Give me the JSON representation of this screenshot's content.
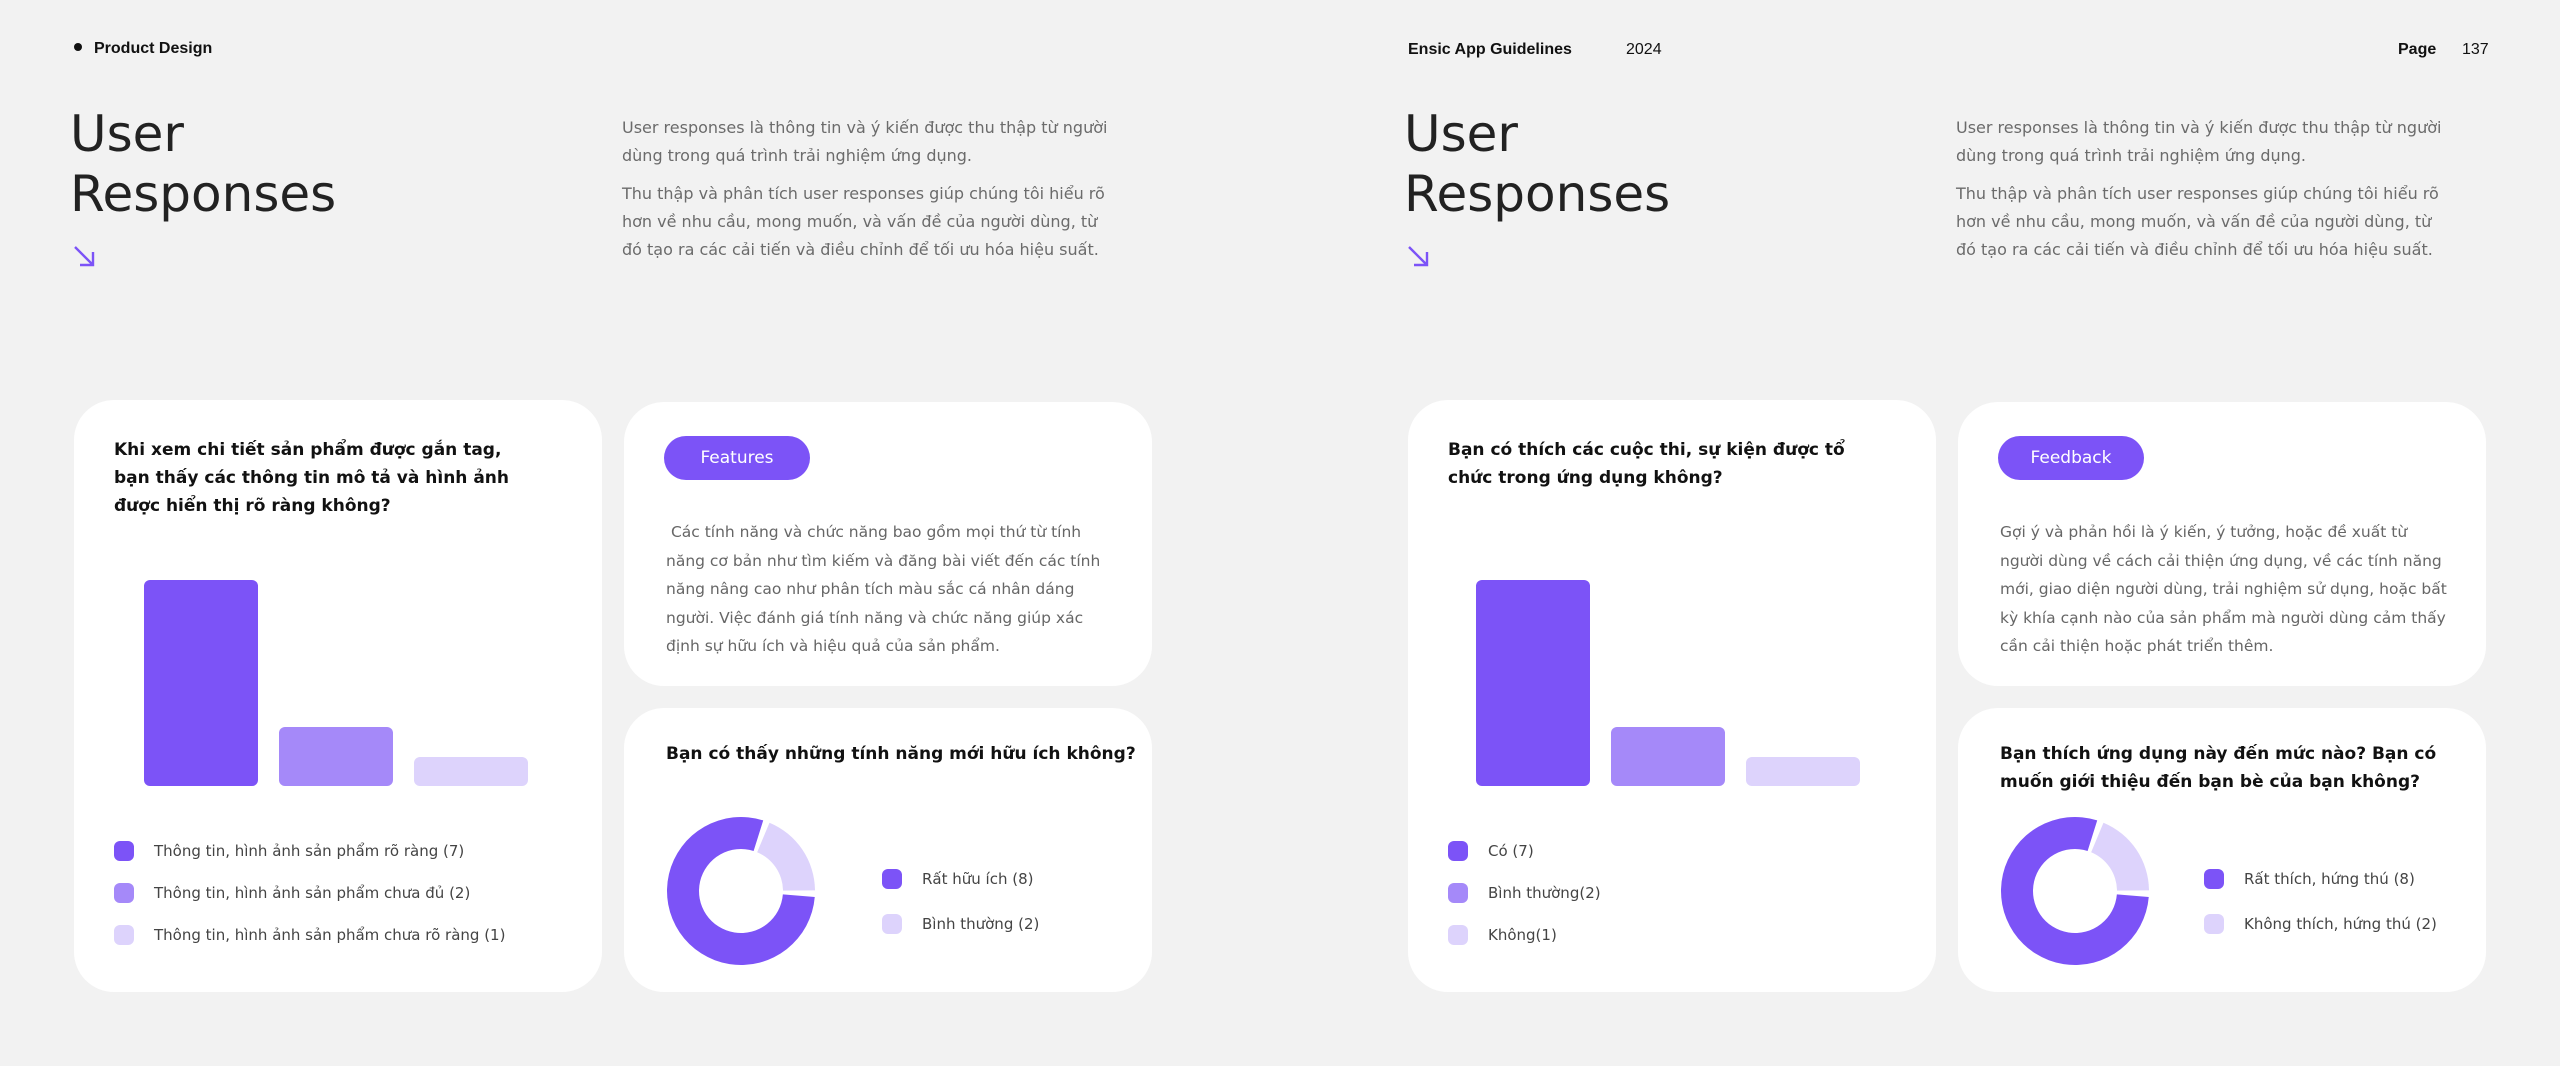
{
  "colors": {
    "primary": "#7c53f7",
    "medium": "#a589f9",
    "light": "#ddd3fc",
    "card": "#ffffff",
    "background": "#f2f2f2"
  },
  "header": {
    "section": "Product Design",
    "doc_title": "Ensic App Guidelines",
    "year": "2024",
    "page_label": "Page",
    "page_number": "137"
  },
  "left": {
    "title_line1": "User",
    "title_line2": "Responses",
    "intro_p1": "User responses là thông tin và ý kiến được thu thập từ người dùng trong quá trình trải nghiệm ứng dụng.",
    "intro_p2": "Thu thập và phân tích user responses giúp chúng tôi hiểu rõ hơn về nhu cầu, mong muốn, và vấn đề của người dùng, từ đó tạo ra các cải tiến và điều chỉnh để tối ưu hóa hiệu suất.",
    "bar_card": {
      "question": "Khi xem chi tiết sản phẩm được gắn tag, bạn thấy các thông tin mô tả và hình ảnh được hiển thị rõ ràng không?",
      "legend": [
        "Thông tin, hình ảnh sản phẩm rõ ràng (7)",
        "Thông tin, hình ảnh sản phẩm chưa đủ (2)",
        "Thông tin, hình ảnh sản phẩm chưa rõ ràng (1)"
      ]
    },
    "info_card": {
      "pill": "Features",
      "text": " Các tính năng và chức năng bao gồm mọi thứ từ tính năng cơ bản như tìm kiếm và đăng bài viết đến các tính năng nâng cao như phân tích màu sắc cá nhân dáng người. Việc đánh giá tính năng và chức năng giúp xác định sự hữu ích và hiệu quả của sản phẩm."
    },
    "donut_card": {
      "question": "Bạn có thấy những tính năng mới hữu ích không?",
      "legend": [
        "Rất hữu ích (8)",
        "Bình thường (2)"
      ]
    }
  },
  "right": {
    "title_line1": "User",
    "title_line2": "Responses",
    "intro_p1": "User responses là thông tin và ý kiến được thu thập từ người dùng trong quá trình trải nghiệm ứng dụng.",
    "intro_p2": "Thu thập và phân tích user responses giúp chúng tôi hiểu rõ hơn về nhu cầu, mong muốn, và vấn đề của người dùng, từ đó tạo ra các cải tiến và điều chỉnh để tối ưu hóa hiệu suất.",
    "bar_card": {
      "question": "Bạn có thích các cuộc thi, sự kiện được tổ chức trong ứng dụng không?",
      "legend": [
        "Có (7)",
        "Bình thường(2)",
        "Không(1)"
      ]
    },
    "info_card": {
      "pill": "Feedback",
      "text": "Gợi ý và phản hồi là ý kiến, ý tưởng, hoặc đề xuất từ người dùng về cách cải thiện ứng dụng, về các tính năng mới, giao diện người dùng, trải nghiệm sử dụng, hoặc bất kỳ khía cạnh nào của sản phẩm mà người dùng cảm thấy cần cải thiện hoặc phát triển thêm."
    },
    "donut_card": {
      "question": "Bạn thích ứng dụng này đến mức nào? Bạn có muốn giới thiệu đến bạn bè của bạn không?",
      "legend": [
        "Rất thích, hứng thú (8)",
        "Không thích, hứng thú (2)"
      ]
    }
  },
  "chart_data": [
    {
      "type": "bar",
      "categories": [
        "Thông tin, hình ảnh sản phẩm rõ ràng",
        "Thông tin, hình ảnh sản phẩm chưa đủ",
        "Thông tin, hình ảnh sản phẩm chưa rõ ràng"
      ],
      "values": [
        7,
        2,
        1
      ],
      "ylim": [
        0,
        7
      ]
    },
    {
      "type": "pie",
      "categories": [
        "Rất hữu ích",
        "Bình thường"
      ],
      "values": [
        8,
        2
      ]
    },
    {
      "type": "bar",
      "categories": [
        "Có",
        "Bình thường",
        "Không"
      ],
      "values": [
        7,
        2,
        1
      ],
      "ylim": [
        0,
        7
      ]
    },
    {
      "type": "pie",
      "categories": [
        "Rất thích, hứng thú",
        "Không thích, hứng thú"
      ],
      "values": [
        8,
        2
      ]
    }
  ]
}
